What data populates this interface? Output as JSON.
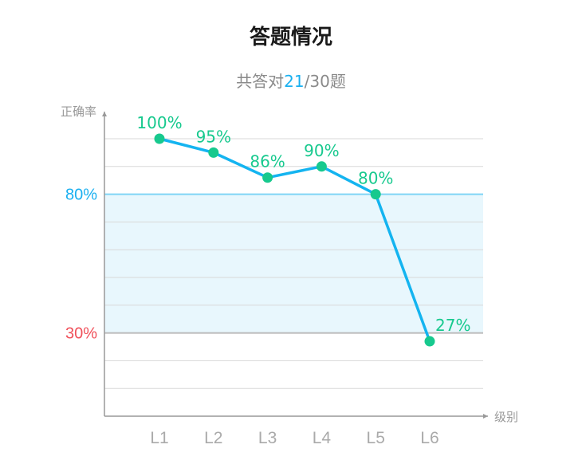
{
  "header": {
    "title": "答题情况",
    "subtitle_prefix": "共答对",
    "subtitle_correct": "21",
    "subtitle_suffix": "/30题"
  },
  "chart_data": {
    "type": "line",
    "title": "答题情况",
    "subtitle": "共答对21/30题",
    "xlabel": "级别",
    "ylabel": "正确率",
    "categories": [
      "L1",
      "L2",
      "L3",
      "L4",
      "L5",
      "L6"
    ],
    "series": [
      {
        "values": [
          100,
          95,
          86,
          90,
          80,
          27
        ]
      }
    ],
    "value_labels": [
      "100%",
      "95%",
      "86%",
      "90%",
      "80%",
      "27%"
    ],
    "y_tick_labels": [
      {
        "value": 80,
        "label": "80%",
        "color": "#1ab0f0"
      },
      {
        "value": 30,
        "label": "30%",
        "color": "#f0505a"
      }
    ],
    "band": {
      "from": 30,
      "to": 80,
      "color": "#e8f7fd"
    },
    "gridlines": [
      10,
      20,
      40,
      50,
      60,
      70,
      90,
      100
    ],
    "ylim": [
      0,
      110
    ],
    "grid": true,
    "colors": {
      "line": "#14b4f0",
      "points": "#17c98e",
      "labels": "#17c98e",
      "axis": "#999999",
      "grid": "#d8d8d8",
      "band_top": "#7fd4f5",
      "band_bottom": "#bbbbbb"
    }
  }
}
